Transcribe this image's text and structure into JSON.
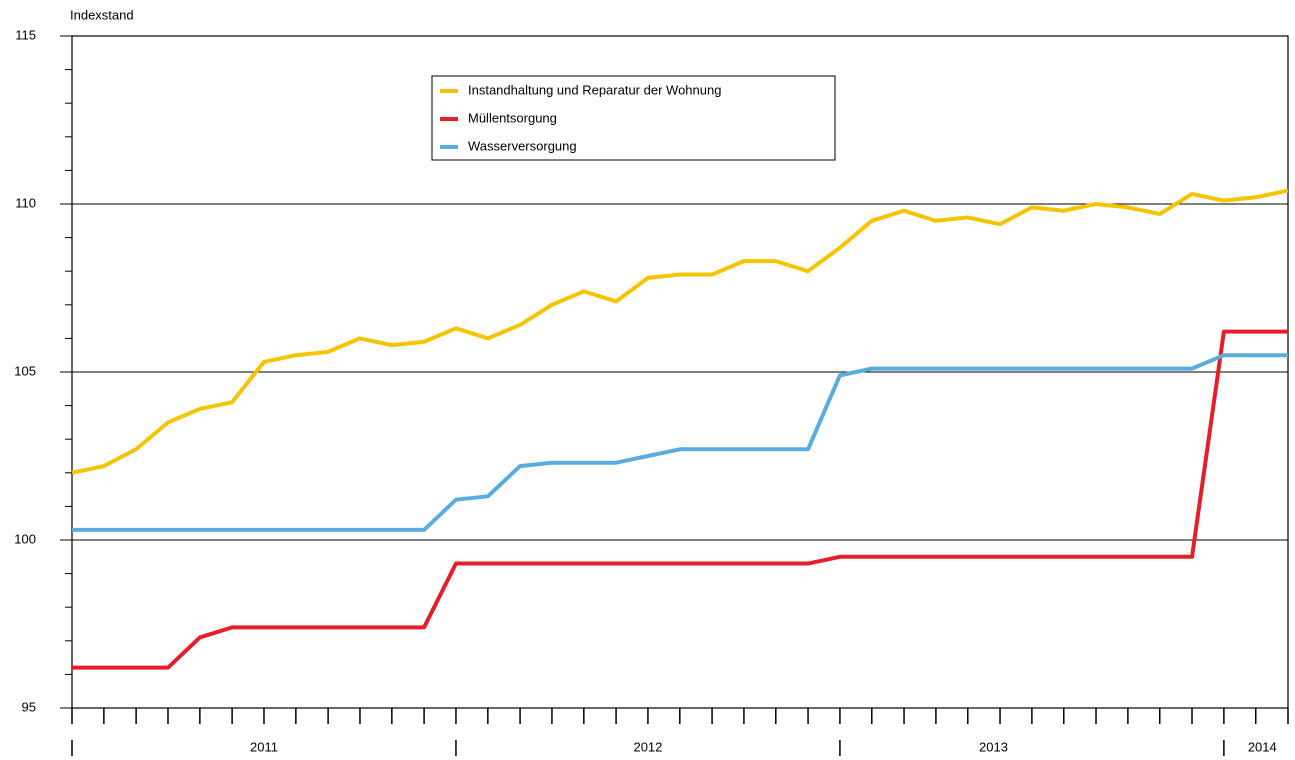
{
  "chart_data": {
    "type": "line",
    "y_axis_label": "Indexstand",
    "x": [
      2011,
      2011.083,
      2011.167,
      2011.25,
      2011.333,
      2011.417,
      2011.5,
      2011.583,
      2011.667,
      2011.75,
      2011.833,
      2011.917,
      2012,
      2012.083,
      2012.167,
      2012.25,
      2012.333,
      2012.417,
      2012.5,
      2012.583,
      2012.667,
      2012.75,
      2012.833,
      2012.917,
      2013,
      2013.083,
      2013.167,
      2013.25,
      2013.333,
      2013.417,
      2013.5,
      2013.583,
      2013.667,
      2013.75,
      2013.833,
      2013.917,
      2014,
      2014.083,
      2014.167
    ],
    "series": [
      {
        "name": "Instandhaltung und Reparatur der Wohnung",
        "color": "#f5c400",
        "values": [
          102.0,
          102.2,
          102.7,
          103.5,
          103.9,
          104.1,
          105.3,
          105.5,
          105.6,
          106.0,
          105.8,
          105.9,
          106.3,
          106.0,
          106.4,
          107.0,
          107.4,
          107.1,
          107.8,
          107.9,
          107.9,
          108.3,
          108.3,
          108.0,
          108.7,
          109.5,
          109.8,
          109.5,
          109.6,
          109.4,
          109.9,
          109.8,
          110.0,
          109.9,
          109.7,
          110.3,
          110.1,
          110.2,
          110.4
        ]
      },
      {
        "name": "Müllentsorgung",
        "color": "#e3202a",
        "values": [
          96.2,
          96.2,
          96.2,
          96.2,
          97.1,
          97.4,
          97.4,
          97.4,
          97.4,
          97.4,
          97.4,
          97.4,
          99.3,
          99.3,
          99.3,
          99.3,
          99.3,
          99.3,
          99.3,
          99.3,
          99.3,
          99.3,
          99.3,
          99.3,
          99.5,
          99.5,
          99.5,
          99.5,
          99.5,
          99.5,
          99.5,
          99.5,
          99.5,
          99.5,
          99.5,
          99.5,
          106.2,
          106.2,
          106.2
        ]
      },
      {
        "name": "Wasserversorgung",
        "color": "#5aabde",
        "values": [
          100.3,
          100.3,
          100.3,
          100.3,
          100.3,
          100.3,
          100.3,
          100.3,
          100.3,
          100.3,
          100.3,
          100.3,
          101.2,
          101.3,
          102.2,
          102.3,
          102.3,
          102.3,
          102.5,
          102.7,
          102.7,
          102.7,
          102.7,
          102.7,
          104.9,
          105.1,
          105.1,
          105.1,
          105.1,
          105.1,
          105.1,
          105.1,
          105.1,
          105.1,
          105.1,
          105.1,
          105.5,
          105.5,
          105.5
        ]
      }
    ],
    "xlim": [
      2011,
      2014.167
    ],
    "xticks": [
      {
        "value": 2011.5,
        "label": "2011"
      },
      {
        "value": 2012.5,
        "label": "2012"
      },
      {
        "value": 2013.4,
        "label": "2013"
      },
      {
        "value": 2014.1,
        "label": "2014"
      }
    ],
    "x_year_boundaries": [
      2011,
      2012,
      2013,
      2014
    ],
    "ylim": [
      95,
      115
    ],
    "yticks": [
      95,
      100,
      105,
      110,
      115
    ],
    "y_minor_ticks": [
      96,
      97,
      98,
      99,
      101,
      102,
      103,
      104,
      106,
      107,
      108,
      109,
      111,
      112,
      113,
      114
    ],
    "grid": true,
    "legend": "upper center"
  }
}
